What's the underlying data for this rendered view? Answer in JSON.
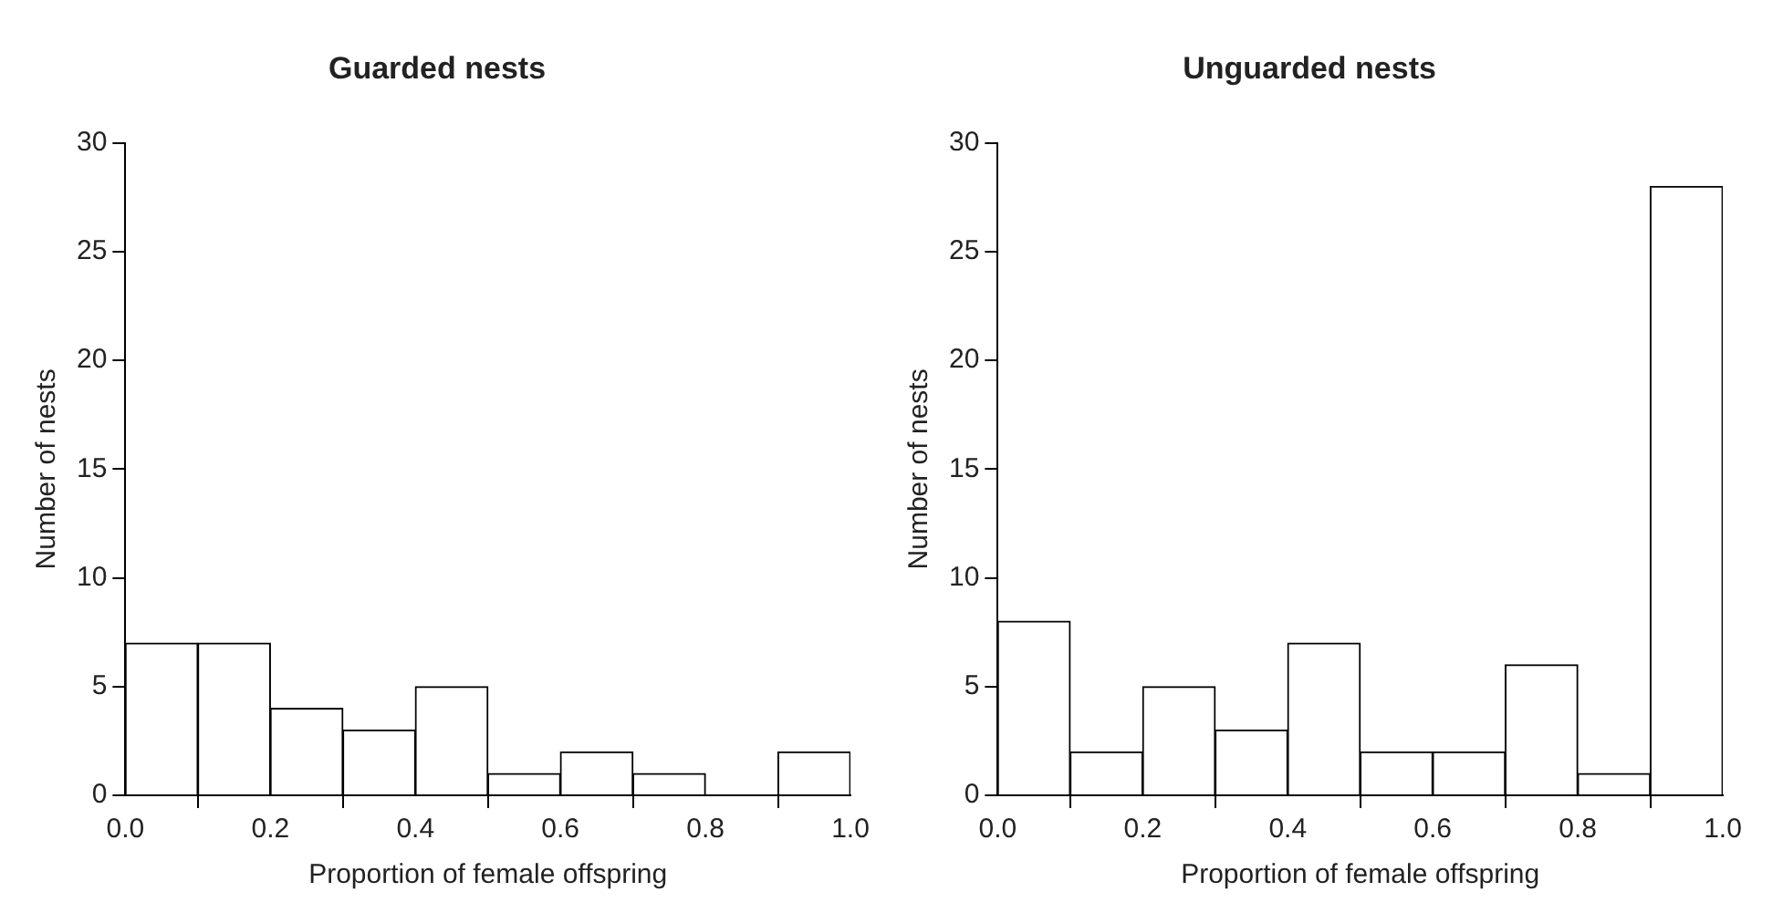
{
  "chart_data": [
    {
      "type": "histogram",
      "title": "Guarded nests",
      "xlabel": "Proportion of female offspring",
      "ylabel": "Number of nests",
      "bins": [
        0,
        0.1,
        0.2,
        0.3,
        0.4,
        0.5,
        0.6,
        0.7,
        0.8,
        0.9,
        1.0
      ],
      "values": [
        7,
        7,
        4,
        3,
        5,
        1,
        2,
        1,
        0,
        2
      ],
      "color": "#ffffff",
      "xlim": [
        0,
        1
      ],
      "xticks": [
        {
          "value": 0,
          "label": "0.0"
        },
        {
          "value": 0.2,
          "label": "0.2"
        },
        {
          "value": 0.4,
          "label": "0.4"
        },
        {
          "value": 0.6,
          "label": "0.6"
        },
        {
          "value": 0.8,
          "label": "0.8"
        },
        {
          "value": 1,
          "label": "1.0"
        }
      ],
      "ylim": [
        0,
        30
      ],
      "yticks": [
        0,
        5,
        10,
        15,
        20,
        25,
        30
      ]
    },
    {
      "type": "histogram",
      "title": "Unguarded nests",
      "xlabel": "Proportion of female offspring",
      "ylabel": "Number of nests",
      "bins": [
        0,
        0.1,
        0.2,
        0.3,
        0.4,
        0.5,
        0.6,
        0.7,
        0.8,
        0.9,
        1.0
      ],
      "values": [
        8,
        2,
        5,
        3,
        7,
        2,
        2,
        6,
        1,
        28
      ],
      "color": "#ffffff",
      "xlim": [
        0,
        1
      ],
      "xticks": [
        {
          "value": 0,
          "label": "0.0"
        },
        {
          "value": 0.2,
          "label": "0.2"
        },
        {
          "value": 0.4,
          "label": "0.4"
        },
        {
          "value": 0.6,
          "label": "0.6"
        },
        {
          "value": 0.8,
          "label": "0.8"
        },
        {
          "value": 1,
          "label": "1.0"
        }
      ],
      "ylim": [
        0,
        30
      ],
      "yticks": [
        0,
        5,
        10,
        15,
        20,
        25,
        30
      ]
    }
  ]
}
